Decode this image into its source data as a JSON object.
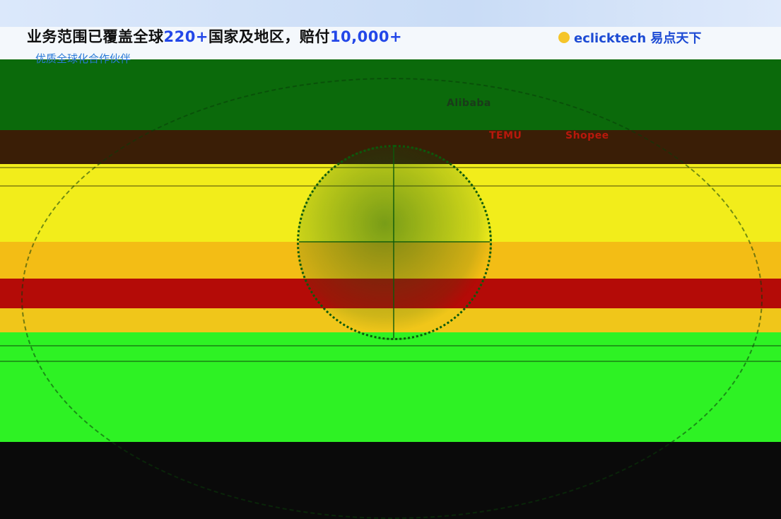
{
  "header": {
    "headline_prefix": "业务范围已覆盖全球",
    "countries_count": "220+",
    "headline_mid": "国家及地区，赔付",
    "clients_count": "10,000+",
    "subline": "优质全球化合作伙伴"
  },
  "brand": {
    "name": "eclicktech 易点天下"
  },
  "partner_logos": [
    "Alibaba",
    "TEMU",
    "Shopee"
  ],
  "colors": {
    "accent": "#2347e8",
    "brand": "#1d4bd4"
  }
}
